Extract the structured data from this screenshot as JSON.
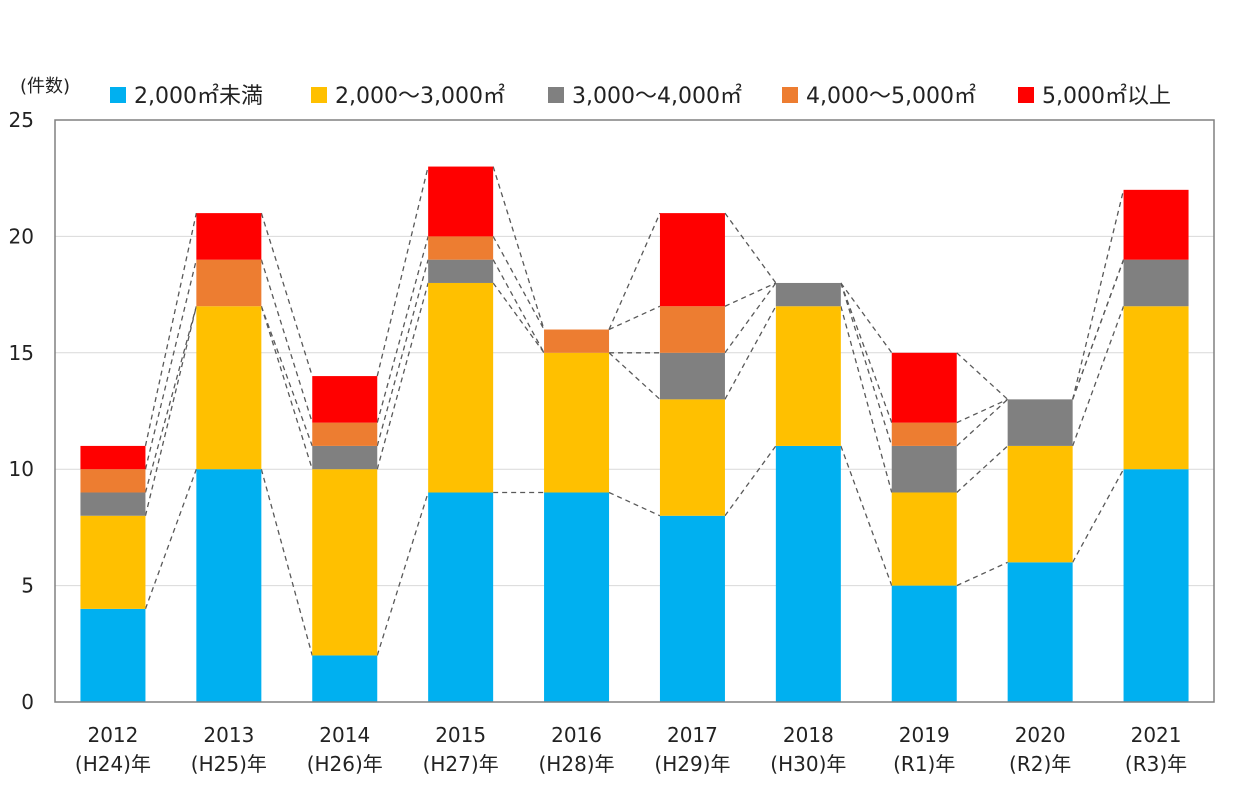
{
  "chart_data": {
    "type": "bar",
    "stacked": true,
    "unit_label": "(件数)",
    "ylim": [
      0,
      25
    ],
    "yticks": [
      0,
      5,
      10,
      15,
      20,
      25
    ],
    "grid": true,
    "legend_placement": "top",
    "categories": [
      [
        "2012",
        "(H24)年"
      ],
      [
        "2013",
        "(H25)年"
      ],
      [
        "2014",
        "(H26)年"
      ],
      [
        "2015",
        "(H27)年"
      ],
      [
        "2016",
        "(H28)年"
      ],
      [
        "2017",
        "(H29)年"
      ],
      [
        "2018",
        "(H30)年"
      ],
      [
        "2019",
        "(R1)年"
      ],
      [
        "2020",
        "(R2)年"
      ],
      [
        "2021",
        "(R3)年"
      ]
    ],
    "series": [
      {
        "name": "2,000㎡未満",
        "color": "#00b0f0",
        "values": [
          4,
          10,
          2,
          9,
          9,
          8,
          11,
          5,
          6,
          10
        ]
      },
      {
        "name": "2,000～3,000㎡",
        "color": "#ffc000",
        "values": [
          4,
          7,
          8,
          9,
          6,
          5,
          6,
          4,
          5,
          7
        ]
      },
      {
        "name": "3,000～4,000㎡",
        "color": "#808080",
        "values": [
          1,
          0,
          1,
          1,
          0,
          2,
          1,
          2,
          2,
          2
        ]
      },
      {
        "name": "4,000～5,000㎡",
        "color": "#ed7d31",
        "values": [
          1,
          2,
          1,
          1,
          1,
          2,
          0,
          1,
          0,
          0
        ]
      },
      {
        "name": "5,000㎡以上",
        "color": "#ff0000",
        "values": [
          1,
          2,
          2,
          3,
          0,
          4,
          0,
          3,
          0,
          3
        ]
      }
    ],
    "series_lines": "dashed"
  }
}
